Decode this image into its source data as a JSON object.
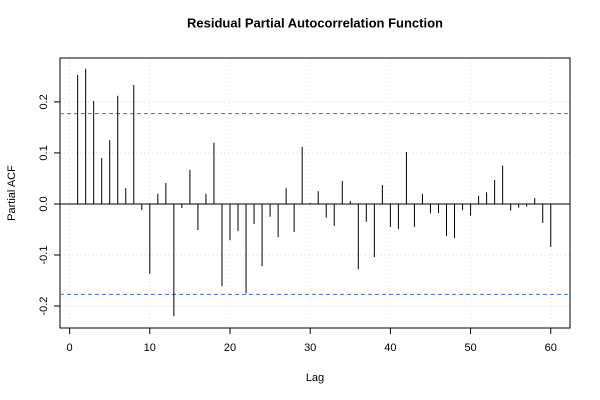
{
  "chart_data": {
    "type": "pacf",
    "title": "Residual Partial Autocorrelation Function",
    "x_label": "Lag",
    "y_label": "Partial ACF",
    "x": [
      1,
      2,
      3,
      4,
      5,
      6,
      7,
      8,
      9,
      10,
      11,
      12,
      13,
      14,
      15,
      16,
      17,
      18,
      19,
      20,
      21,
      22,
      23,
      24,
      25,
      26,
      27,
      28,
      29,
      30,
      31,
      32,
      33,
      34,
      35,
      36,
      37,
      38,
      39,
      40,
      41,
      42,
      43,
      44,
      45,
      46,
      47,
      48,
      49,
      50,
      51,
      52,
      53,
      54,
      55,
      56,
      57,
      58,
      59,
      60
    ],
    "values": [
      0.253,
      0.265,
      0.202,
      0.09,
      0.125,
      0.212,
      0.031,
      0.233,
      -0.012,
      -0.137,
      0.02,
      0.041,
      -0.22,
      -0.008,
      0.067,
      -0.051,
      0.02,
      0.12,
      -0.161,
      -0.071,
      -0.053,
      -0.175,
      -0.039,
      -0.122,
      -0.025,
      -0.065,
      0.031,
      -0.055,
      0.112,
      0.002,
      0.025,
      -0.027,
      -0.043,
      0.045,
      0.006,
      -0.128,
      -0.035,
      -0.104,
      0.037,
      -0.045,
      -0.049,
      0.102,
      -0.045,
      0.02,
      -0.018,
      -0.018,
      -0.063,
      -0.067,
      -0.012,
      -0.023,
      0.016,
      0.023,
      0.047,
      0.075,
      -0.013,
      -0.007,
      -0.005,
      0.012,
      -0.037,
      -0.084
    ],
    "color": "#000000",
    "conf_limits": [
      0.177,
      -0.177
    ],
    "conf_color": "#4169e1",
    "xlim": [
      -1.2,
      62.4
    ],
    "ylim": [
      -0.243,
      0.286
    ],
    "xticks": [
      0,
      10,
      20,
      30,
      40,
      50,
      60
    ],
    "yticks": [
      -0.2,
      -0.1,
      {
        "value": 0,
        "label": "0.0"
      },
      0.1,
      0.2
    ],
    "grid": true
  }
}
